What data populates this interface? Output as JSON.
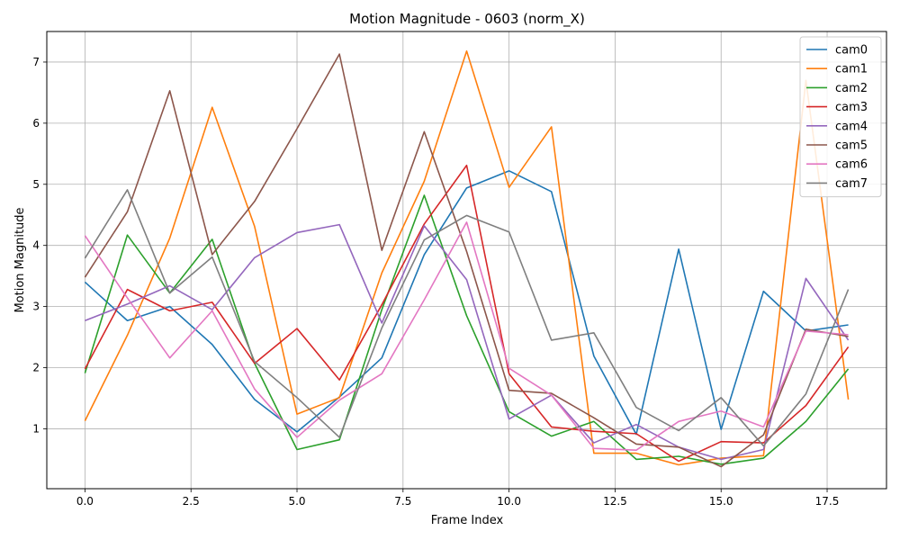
{
  "chart_data": {
    "type": "line",
    "title": "Motion Magnitude - 0603 (norm_X)",
    "xlabel": "Frame Index",
    "ylabel": "Motion Magnitude",
    "xlim": [
      -0.9,
      18.9
    ],
    "ylim": [
      0.02,
      7.5
    ],
    "xticks": [
      0.0,
      2.5,
      5.0,
      7.5,
      10.0,
      12.5,
      15.0,
      17.5
    ],
    "xtick_labels": [
      "0.0",
      "2.5",
      "5.0",
      "7.5",
      "10.0",
      "12.5",
      "15.0",
      "17.5"
    ],
    "yticks": [
      1,
      2,
      3,
      4,
      5,
      6,
      7
    ],
    "ytick_labels": [
      "1",
      "2",
      "3",
      "4",
      "5",
      "6",
      "7"
    ],
    "grid": true,
    "legend_position": "top-right",
    "x": [
      0,
      1,
      2,
      3,
      4,
      5,
      6,
      7,
      8,
      9,
      10,
      11,
      12,
      13,
      14,
      15,
      16,
      17,
      18
    ],
    "series": [
      {
        "name": "cam0",
        "color": "#1f77b4",
        "values": [
          3.4,
          2.77,
          3.0,
          2.38,
          1.48,
          0.95,
          1.52,
          2.16,
          3.85,
          4.94,
          5.22,
          4.88,
          2.19,
          0.91,
          3.94,
          0.99,
          3.25,
          2.6,
          2.7
        ]
      },
      {
        "name": "cam1",
        "color": "#ff7f0e",
        "values": [
          1.13,
          2.53,
          4.12,
          6.26,
          4.31,
          1.24,
          1.51,
          3.55,
          5.05,
          7.18,
          4.95,
          5.94,
          0.6,
          0.6,
          0.41,
          0.52,
          0.56,
          6.7,
          1.48
        ]
      },
      {
        "name": "cam2",
        "color": "#2ca02c",
        "values": [
          1.91,
          4.17,
          3.22,
          4.1,
          2.07,
          0.66,
          0.82,
          2.95,
          4.82,
          2.85,
          1.28,
          0.88,
          1.12,
          0.5,
          0.55,
          0.42,
          0.52,
          1.12,
          1.98
        ]
      },
      {
        "name": "cam3",
        "color": "#d62728",
        "values": [
          1.98,
          3.28,
          2.93,
          3.07,
          2.07,
          2.64,
          1.8,
          3.03,
          4.35,
          5.31,
          1.9,
          1.03,
          0.96,
          0.92,
          0.47,
          0.79,
          0.77,
          1.38,
          2.34
        ]
      },
      {
        "name": "cam4",
        "color": "#9467bd",
        "values": [
          2.77,
          3.04,
          3.34,
          2.95,
          3.8,
          4.21,
          4.34,
          2.73,
          4.32,
          3.44,
          1.16,
          1.55,
          0.77,
          1.07,
          0.7,
          0.5,
          0.66,
          3.46,
          2.45
        ]
      },
      {
        "name": "cam5",
        "color": "#8c564b",
        "values": [
          3.48,
          4.55,
          6.53,
          3.85,
          4.72,
          5.91,
          7.13,
          3.92,
          5.86,
          3.9,
          1.63,
          1.58,
          1.18,
          0.75,
          0.7,
          0.38,
          0.9,
          2.63,
          2.51
        ]
      },
      {
        "name": "cam6",
        "color": "#e377c2",
        "values": [
          4.16,
          3.14,
          2.16,
          2.93,
          1.65,
          0.86,
          1.47,
          1.9,
          3.11,
          4.38,
          1.99,
          1.55,
          0.68,
          0.65,
          1.12,
          1.29,
          1.03,
          2.6,
          2.54
        ]
      },
      {
        "name": "cam7",
        "color": "#7f7f7f",
        "values": [
          3.79,
          4.91,
          3.22,
          3.81,
          2.1,
          1.51,
          0.86,
          2.65,
          4.09,
          4.49,
          4.22,
          2.45,
          2.57,
          1.35,
          0.97,
          1.51,
          0.72,
          1.57,
          3.28
        ]
      }
    ]
  }
}
